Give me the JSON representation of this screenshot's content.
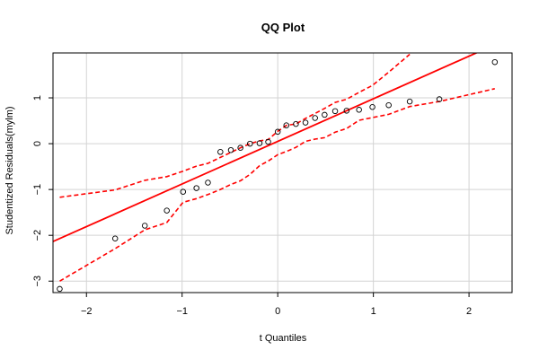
{
  "chart_data": {
    "type": "scatter",
    "title": "QQ Plot",
    "xlabel": "t Quantiles",
    "ylabel": "Studentized Residuals(mylm)",
    "xlim": [
      -2.35,
      2.45
    ],
    "ylim": [
      -3.25,
      1.98
    ],
    "xticks": [
      -2,
      -1,
      0,
      1,
      2
    ],
    "yticks": [
      -3,
      -2,
      -1,
      0,
      1
    ],
    "grid": true,
    "colors": {
      "points": "#000000",
      "reference_line": "#ff0000",
      "envelope": "#ff0000",
      "grid": "#d3d3d3"
    },
    "points": [
      {
        "x": -2.28,
        "y": -3.17
      },
      {
        "x": -1.7,
        "y": -2.07
      },
      {
        "x": -1.39,
        "y": -1.79
      },
      {
        "x": -1.16,
        "y": -1.46
      },
      {
        "x": -0.99,
        "y": -1.05
      },
      {
        "x": -0.85,
        "y": -0.97
      },
      {
        "x": -0.73,
        "y": -0.85
      },
      {
        "x": -0.6,
        "y": -0.18
      },
      {
        "x": -0.49,
        "y": -0.14
      },
      {
        "x": -0.39,
        "y": -0.09
      },
      {
        "x": -0.29,
        "y": 0.0
      },
      {
        "x": -0.19,
        "y": 0.01
      },
      {
        "x": -0.1,
        "y": 0.04
      },
      {
        "x": 0.0,
        "y": 0.26
      },
      {
        "x": 0.09,
        "y": 0.4
      },
      {
        "x": 0.19,
        "y": 0.43
      },
      {
        "x": 0.29,
        "y": 0.46
      },
      {
        "x": 0.39,
        "y": 0.56
      },
      {
        "x": 0.49,
        "y": 0.63
      },
      {
        "x": 0.6,
        "y": 0.71
      },
      {
        "x": 0.72,
        "y": 0.72
      },
      {
        "x": 0.85,
        "y": 0.74
      },
      {
        "x": 0.99,
        "y": 0.8
      },
      {
        "x": 1.16,
        "y": 0.84
      },
      {
        "x": 1.38,
        "y": 0.92
      },
      {
        "x": 1.69,
        "y": 0.97
      },
      {
        "x": 2.27,
        "y": 1.78
      }
    ],
    "reference_line": {
      "intercept": 0.05,
      "slope": 0.93
    },
    "envelope_upper": [
      {
        "x": -2.28,
        "y": -1.17
      },
      {
        "x": -1.7,
        "y": -1.01
      },
      {
        "x": -1.39,
        "y": -0.8
      },
      {
        "x": -1.16,
        "y": -0.72
      },
      {
        "x": -0.99,
        "y": -0.6
      },
      {
        "x": -0.85,
        "y": -0.49
      },
      {
        "x": -0.73,
        "y": -0.43
      },
      {
        "x": -0.6,
        "y": -0.3
      },
      {
        "x": -0.49,
        "y": -0.19
      },
      {
        "x": -0.39,
        "y": -0.09
      },
      {
        "x": -0.29,
        "y": 0.0
      },
      {
        "x": -0.19,
        "y": 0.06
      },
      {
        "x": -0.1,
        "y": 0.09
      },
      {
        "x": 0.0,
        "y": 0.27
      },
      {
        "x": 0.09,
        "y": 0.4
      },
      {
        "x": 0.19,
        "y": 0.43
      },
      {
        "x": 0.29,
        "y": 0.55
      },
      {
        "x": 0.39,
        "y": 0.66
      },
      {
        "x": 0.49,
        "y": 0.77
      },
      {
        "x": 0.6,
        "y": 0.9
      },
      {
        "x": 0.72,
        "y": 0.97
      },
      {
        "x": 0.85,
        "y": 1.12
      },
      {
        "x": 0.99,
        "y": 1.27
      },
      {
        "x": 1.16,
        "y": 1.56
      },
      {
        "x": 1.38,
        "y": 1.95
      }
    ],
    "envelope_lower": [
      {
        "x": -2.28,
        "y": -3.0
      },
      {
        "x": -1.7,
        "y": -2.29
      },
      {
        "x": -1.39,
        "y": -1.88
      },
      {
        "x": -1.16,
        "y": -1.72
      },
      {
        "x": -0.99,
        "y": -1.28
      },
      {
        "x": -0.85,
        "y": -1.2
      },
      {
        "x": -0.73,
        "y": -1.11
      },
      {
        "x": -0.6,
        "y": -1.0
      },
      {
        "x": -0.49,
        "y": -0.89
      },
      {
        "x": -0.39,
        "y": -0.81
      },
      {
        "x": -0.29,
        "y": -0.67
      },
      {
        "x": -0.19,
        "y": -0.48
      },
      {
        "x": -0.1,
        "y": -0.38
      },
      {
        "x": 0.0,
        "y": -0.24
      },
      {
        "x": 0.09,
        "y": -0.17
      },
      {
        "x": 0.19,
        "y": -0.08
      },
      {
        "x": 0.29,
        "y": 0.05
      },
      {
        "x": 0.39,
        "y": 0.1
      },
      {
        "x": 0.49,
        "y": 0.13
      },
      {
        "x": 0.6,
        "y": 0.25
      },
      {
        "x": 0.72,
        "y": 0.33
      },
      {
        "x": 0.85,
        "y": 0.51
      },
      {
        "x": 0.99,
        "y": 0.57
      },
      {
        "x": 1.16,
        "y": 0.64
      },
      {
        "x": 1.38,
        "y": 0.81
      },
      {
        "x": 1.69,
        "y": 0.92
      },
      {
        "x": 2.27,
        "y": 1.2
      }
    ]
  }
}
